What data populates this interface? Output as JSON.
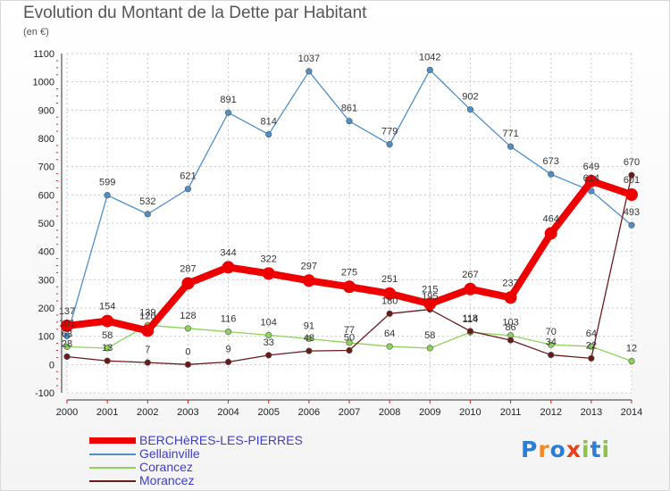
{
  "title": "Evolution du Montant de la Dette par Habitant",
  "subtitle": "(en €)",
  "logo": {
    "letters": [
      "P",
      "r",
      "o",
      "x",
      "i",
      "t",
      "i"
    ],
    "colors": [
      "#2a7fd4",
      "#f28a1e",
      "#2a7fd4",
      "#e8401c",
      "#8bc34a",
      "#2a7fd4",
      "#8bc34a"
    ]
  },
  "chart_data": {
    "type": "line",
    "title": "Evolution du Montant de la Dette par Habitant",
    "subtitle": "(en €)",
    "x": [
      "2000",
      "2001",
      "2002",
      "2003",
      "2004",
      "2005",
      "2006",
      "2007",
      "2008",
      "2009",
      "2010",
      "2011",
      "2012",
      "2013",
      "2014"
    ],
    "ylim": [
      -100,
      1100
    ],
    "yticks": [
      "-100",
      "0",
      "100",
      "200",
      "300",
      "400",
      "500",
      "600",
      "700",
      "800",
      "900",
      "1000",
      "1100"
    ],
    "grid": true,
    "legend_position": "bottom-left",
    "series": [
      {
        "name": "BERCHèRES-LES-PIERRES",
        "color": "#ee0000",
        "values": [
          137,
          154,
          120,
          287,
          344,
          322,
          297,
          275,
          251,
          215,
          267,
          237,
          464,
          649,
          601
        ]
      },
      {
        "name": "Gellainville",
        "color": "#4f8fc8",
        "values": [
          101,
          599,
          532,
          621,
          891,
          814,
          1037,
          861,
          779,
          1042,
          902,
          771,
          673,
          614,
          493
        ]
      },
      {
        "name": "Corancez",
        "color": "#8ed25a",
        "values": [
          63,
          58,
          139,
          128,
          116,
          104,
          91,
          77,
          64,
          58,
          114,
          103,
          70,
          64,
          12
        ]
      },
      {
        "name": "Morancez",
        "color": "#6b1a1a",
        "values": [
          28,
          13,
          7,
          0,
          9,
          33,
          48,
          50,
          180,
          195,
          118,
          86,
          34,
          22,
          670
        ]
      }
    ]
  }
}
